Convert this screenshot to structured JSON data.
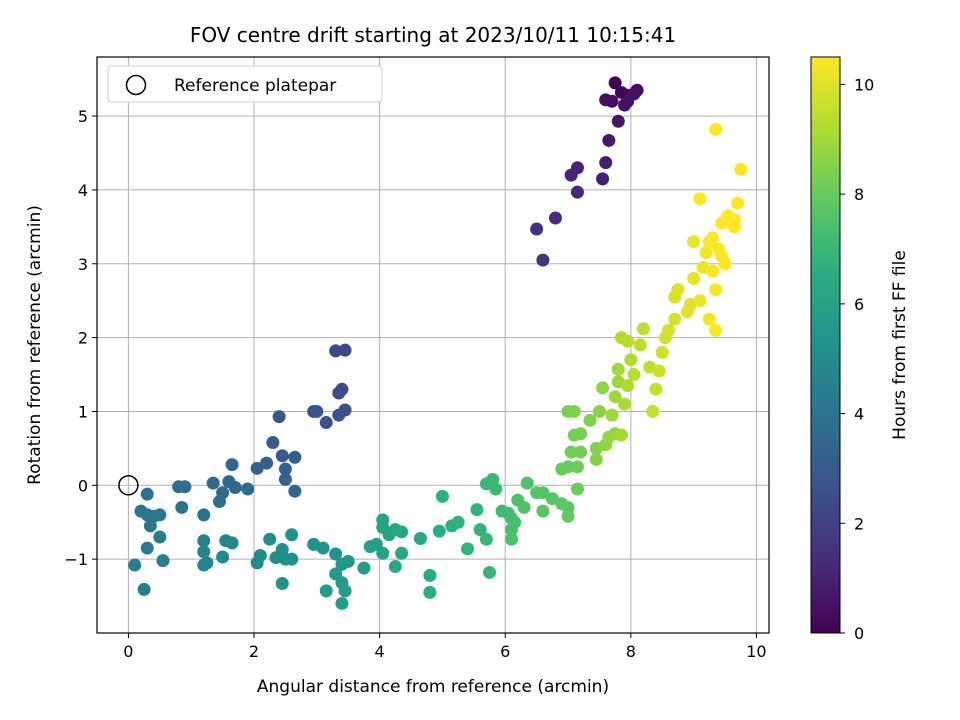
{
  "chart_data": {
    "type": "scatter",
    "title": "FOV centre drift starting at 2023/10/11 10:15:41",
    "xlabel": "Angular distance from reference (arcmin)",
    "ylabel": "Rotation from reference (arcmin)",
    "colorbar_label": "Hours from first FF file",
    "xlim": [
      -0.5,
      10.2
    ],
    "ylim": [
      -2.0,
      5.8
    ],
    "clim": [
      0,
      10.5
    ],
    "xticks": [
      0,
      2,
      4,
      6,
      8,
      10
    ],
    "yticks": [
      -1,
      0,
      1,
      2,
      3,
      4,
      5
    ],
    "cticks": [
      0,
      2,
      4,
      6,
      8,
      10
    ],
    "colormap": "viridis",
    "grid": true,
    "legend": {
      "label": "Reference platepar",
      "position": "upper-left",
      "marker": "open-circle"
    },
    "reference_point": {
      "x": 0,
      "y": 0
    },
    "series": [
      {
        "points": [
          [
            7.75,
            5.45,
            0.1
          ],
          [
            7.85,
            5.32,
            0.2
          ],
          [
            7.95,
            5.28,
            0.25
          ],
          [
            8.1,
            5.35,
            0.3
          ],
          [
            7.7,
            5.2,
            0.35
          ],
          [
            7.6,
            5.22,
            0.4
          ],
          [
            7.9,
            5.15,
            0.45
          ],
          [
            7.95,
            5.2,
            0.5
          ],
          [
            8.05,
            5.3,
            0.55
          ],
          [
            7.8,
            4.93,
            0.6
          ],
          [
            7.65,
            4.67,
            0.7
          ],
          [
            7.6,
            4.37,
            0.8
          ],
          [
            7.55,
            4.15,
            0.9
          ],
          [
            7.15,
            4.3,
            1.0
          ],
          [
            7.05,
            4.2,
            1.1
          ],
          [
            7.15,
            3.97,
            1.2
          ],
          [
            6.8,
            3.62,
            1.3
          ],
          [
            6.5,
            3.47,
            1.4
          ],
          [
            6.6,
            3.05,
            1.5
          ],
          [
            3.3,
            1.82,
            2.3
          ],
          [
            3.45,
            1.83,
            2.35
          ],
          [
            3.4,
            1.3,
            2.45
          ],
          [
            3.35,
            1.25,
            2.5
          ],
          [
            3.45,
            1.02,
            2.55
          ],
          [
            3.35,
            0.95,
            2.6
          ],
          [
            3.15,
            0.85,
            2.65
          ],
          [
            2.95,
            1.0,
            2.7
          ],
          [
            3.0,
            1.0,
            2.75
          ],
          [
            2.4,
            0.93,
            2.85
          ],
          [
            2.3,
            0.58,
            3.0
          ],
          [
            2.45,
            0.4,
            3.05
          ],
          [
            2.65,
            0.38,
            3.1
          ],
          [
            2.2,
            0.3,
            3.15
          ],
          [
            2.5,
            0.22,
            3.2
          ],
          [
            2.05,
            0.23,
            3.25
          ],
          [
            2.5,
            0.08,
            3.3
          ],
          [
            2.65,
            -0.08,
            3.35
          ],
          [
            1.65,
            0.28,
            3.4
          ],
          [
            1.6,
            0.05,
            3.45
          ],
          [
            1.7,
            -0.03,
            3.5
          ],
          [
            1.35,
            0.03,
            3.55
          ],
          [
            1.5,
            -0.1,
            3.6
          ],
          [
            1.9,
            -0.05,
            3.65
          ],
          [
            1.45,
            -0.22,
            3.7
          ],
          [
            0.8,
            -0.02,
            3.75
          ],
          [
            0.9,
            -0.02,
            3.8
          ],
          [
            0.3,
            -0.12,
            3.9
          ],
          [
            0.85,
            -0.3,
            3.95
          ],
          [
            1.2,
            -0.4,
            4.0
          ],
          [
            0.2,
            -0.35,
            4.05
          ],
          [
            0.3,
            -0.4,
            4.1
          ],
          [
            0.4,
            -0.42,
            4.15
          ],
          [
            0.5,
            -0.4,
            4.2
          ],
          [
            0.35,
            -0.55,
            4.25
          ],
          [
            0.5,
            -0.7,
            4.3
          ],
          [
            0.3,
            -0.85,
            4.35
          ],
          [
            0.55,
            -1.02,
            4.4
          ],
          [
            0.1,
            -1.08,
            4.45
          ],
          [
            0.25,
            -1.41,
            4.5
          ],
          [
            1.2,
            -0.75,
            4.55
          ],
          [
            1.2,
            -0.9,
            4.6
          ],
          [
            1.25,
            -1.05,
            4.65
          ],
          [
            1.2,
            -1.08,
            4.7
          ],
          [
            1.55,
            -0.75,
            4.75
          ],
          [
            1.65,
            -0.78,
            4.8
          ],
          [
            1.5,
            -0.97,
            4.85
          ],
          [
            2.05,
            -1.05,
            4.9
          ],
          [
            2.1,
            -0.95,
            4.95
          ],
          [
            2.25,
            -0.73,
            5.0
          ],
          [
            2.35,
            -0.98,
            5.05
          ],
          [
            2.45,
            -0.87,
            5.1
          ],
          [
            2.5,
            -1.0,
            5.15
          ],
          [
            2.6,
            -1.0,
            5.2
          ],
          [
            2.45,
            -1.33,
            5.25
          ],
          [
            2.6,
            -0.67,
            5.3
          ],
          [
            2.95,
            -0.8,
            5.35
          ],
          [
            3.1,
            -0.85,
            5.4
          ],
          [
            3.3,
            -0.93,
            5.45
          ],
          [
            3.4,
            -1.07,
            5.5
          ],
          [
            3.5,
            -1.03,
            5.55
          ],
          [
            3.3,
            -1.2,
            5.6
          ],
          [
            3.4,
            -1.32,
            5.65
          ],
          [
            3.15,
            -1.43,
            5.7
          ],
          [
            3.45,
            -1.43,
            5.75
          ],
          [
            3.4,
            -1.6,
            5.8
          ],
          [
            3.75,
            -1.12,
            5.85
          ],
          [
            3.85,
            -0.83,
            5.9
          ],
          [
            3.95,
            -0.8,
            5.95
          ],
          [
            4.05,
            -0.92,
            6.0
          ],
          [
            4.05,
            -0.57,
            6.05
          ],
          [
            4.05,
            -0.47,
            6.1
          ],
          [
            4.15,
            -0.67,
            6.15
          ],
          [
            4.25,
            -0.6,
            6.2
          ],
          [
            4.35,
            -0.63,
            6.25
          ],
          [
            4.35,
            -0.92,
            6.3
          ],
          [
            4.25,
            -1.1,
            6.35
          ],
          [
            4.65,
            -0.72,
            6.4
          ],
          [
            4.8,
            -1.22,
            6.45
          ],
          [
            4.8,
            -1.45,
            6.5
          ],
          [
            4.95,
            -0.62,
            6.55
          ],
          [
            5.0,
            -0.15,
            6.6
          ],
          [
            5.15,
            -0.55,
            6.65
          ],
          [
            5.25,
            -0.5,
            6.7
          ],
          [
            5.4,
            -0.86,
            6.75
          ],
          [
            5.55,
            -0.33,
            6.8
          ],
          [
            5.6,
            -0.6,
            6.85
          ],
          [
            5.7,
            -0.73,
            6.9
          ],
          [
            5.75,
            -1.18,
            6.95
          ],
          [
            5.7,
            0.02,
            7.0
          ],
          [
            5.8,
            0.08,
            7.05
          ],
          [
            5.85,
            -0.05,
            7.1
          ],
          [
            5.95,
            -0.35,
            7.15
          ],
          [
            6.05,
            -0.38,
            7.2
          ],
          [
            6.1,
            -0.45,
            7.25
          ],
          [
            6.15,
            -0.5,
            7.3
          ],
          [
            6.1,
            -0.6,
            7.35
          ],
          [
            6.1,
            -0.73,
            7.4
          ],
          [
            6.2,
            -0.2,
            7.45
          ],
          [
            6.3,
            -0.3,
            7.5
          ],
          [
            6.35,
            0.03,
            7.55
          ],
          [
            6.5,
            -0.1,
            7.6
          ],
          [
            6.6,
            -0.1,
            7.65
          ],
          [
            6.6,
            -0.35,
            7.7
          ],
          [
            6.75,
            -0.18,
            7.75
          ],
          [
            6.9,
            -0.25,
            7.8
          ],
          [
            7.0,
            -0.3,
            7.85
          ],
          [
            7.0,
            -0.42,
            7.9
          ],
          [
            6.9,
            0.22,
            7.95
          ],
          [
            7.0,
            0.25,
            8.0
          ],
          [
            7.15,
            -0.05,
            8.05
          ],
          [
            7.15,
            0.25,
            8.1
          ],
          [
            7.2,
            0.45,
            8.15
          ],
          [
            7.05,
            0.45,
            8.2
          ],
          [
            7.1,
            0.68,
            8.25
          ],
          [
            7.2,
            0.7,
            8.3
          ],
          [
            7.0,
            1.0,
            8.35
          ],
          [
            7.1,
            1.0,
            8.4
          ],
          [
            7.35,
            0.88,
            8.45
          ],
          [
            7.45,
            0.5,
            8.5
          ],
          [
            7.45,
            0.35,
            8.55
          ],
          [
            7.5,
            1.0,
            8.6
          ],
          [
            7.55,
            1.32,
            8.65
          ],
          [
            7.6,
            0.55,
            8.7
          ],
          [
            7.65,
            0.65,
            8.75
          ],
          [
            7.75,
            0.7,
            8.8
          ],
          [
            7.7,
            0.95,
            8.85
          ],
          [
            7.75,
            1.2,
            8.9
          ],
          [
            7.8,
            1.4,
            8.95
          ],
          [
            7.8,
            1.57,
            9.0
          ],
          [
            7.85,
            0.68,
            9.05
          ],
          [
            7.9,
            1.1,
            9.1
          ],
          [
            7.95,
            1.35,
            9.15
          ],
          [
            8.0,
            1.7,
            9.2
          ],
          [
            7.85,
            2.0,
            9.25
          ],
          [
            7.95,
            1.95,
            9.3
          ],
          [
            8.05,
            1.5,
            9.35
          ],
          [
            8.15,
            1.9,
            9.4
          ],
          [
            8.2,
            2.12,
            9.45
          ],
          [
            8.3,
            1.6,
            9.5
          ],
          [
            8.35,
            1.0,
            9.55
          ],
          [
            8.4,
            1.3,
            9.6
          ],
          [
            8.45,
            1.55,
            9.65
          ],
          [
            8.5,
            1.8,
            9.7
          ],
          [
            8.55,
            2.0,
            9.75
          ],
          [
            8.6,
            2.1,
            9.8
          ],
          [
            8.7,
            2.25,
            9.85
          ],
          [
            8.7,
            2.55,
            9.9
          ],
          [
            8.75,
            2.65,
            9.95
          ],
          [
            8.9,
            2.35,
            10.0
          ],
          [
            8.95,
            2.45,
            10.05
          ],
          [
            9.0,
            2.8,
            10.1
          ],
          [
            9.0,
            3.3,
            10.15
          ],
          [
            9.1,
            2.5,
            10.2
          ],
          [
            9.15,
            2.95,
            10.25
          ],
          [
            9.2,
            3.15,
            10.3
          ],
          [
            9.25,
            2.25,
            10.35
          ],
          [
            9.35,
            2.1,
            10.4
          ],
          [
            9.35,
            2.65,
            10.4
          ],
          [
            9.3,
            3.35,
            10.45
          ],
          [
            9.4,
            3.2,
            10.45
          ],
          [
            9.45,
            3.1,
            10.5
          ],
          [
            9.45,
            3.55,
            10.5
          ],
          [
            9.5,
            3.0,
            10.5
          ],
          [
            9.55,
            3.65,
            10.5
          ],
          [
            9.65,
            3.5,
            10.5
          ],
          [
            9.65,
            3.6,
            10.5
          ],
          [
            9.7,
            3.82,
            10.5
          ],
          [
            9.75,
            4.28,
            10.5
          ],
          [
            9.35,
            4.82,
            10.5
          ],
          [
            9.1,
            3.88,
            10.45
          ],
          [
            9.25,
            3.3,
            10.45
          ],
          [
            9.3,
            2.9,
            10.4
          ]
        ]
      }
    ]
  }
}
